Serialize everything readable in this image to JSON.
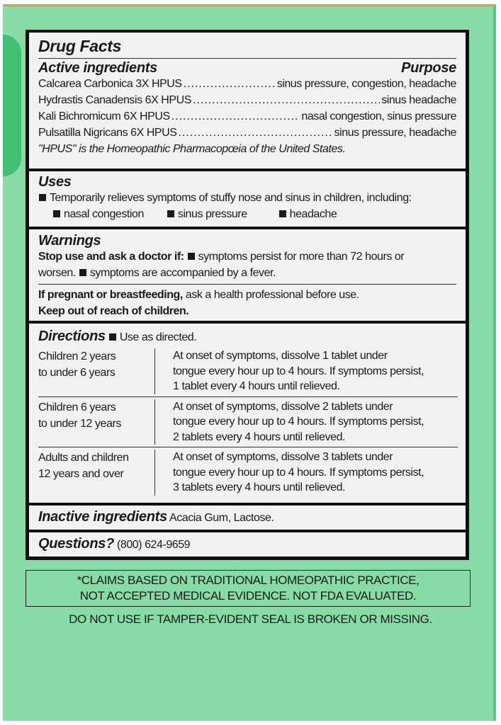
{
  "title": "Drug Facts",
  "active": {
    "heading": "Active ingredients",
    "purpose_heading": "Purpose",
    "items": [
      {
        "name": "Calcarea Carbonica 3X HPUS",
        "purpose": "sinus pressure, congestion, headache"
      },
      {
        "name": "Hydrastis Canadensis 6X HPUS",
        "purpose": "sinus headache"
      },
      {
        "name": "Kali Bichromicum 6X HPUS",
        "purpose": "nasal congestion, sinus pressure"
      },
      {
        "name": "Pulsatilla Nigricans 6X HPUS",
        "purpose": "sinus pressure, headache"
      }
    ],
    "note": "\"HPUS\" is the Homeopathic Pharmacopœia of the United States."
  },
  "uses": {
    "heading": "Uses",
    "text": "Temporarily relieves symptoms of stuffy nose and sinus in children, including:",
    "bullets": [
      "nasal congestion",
      "sinus pressure",
      "headache"
    ]
  },
  "warnings": {
    "heading": "Warnings",
    "stop_bold": "Stop use and ask a doctor if:",
    "stop_1": "symptoms persist for more than 72 hours or",
    "stop_1b": "worsen.",
    "stop_2": "symptoms are accompanied by a fever.",
    "preg_bold": "If pregnant or breastfeeding,",
    "preg_text": " ask a health professional before use.",
    "keep": "Keep out of reach of children."
  },
  "directions": {
    "heading": "Directions",
    "intro": "Use as directed.",
    "rows": [
      {
        "who": [
          "Children 2 years",
          "to under 6 years"
        ],
        "how": [
          "At onset of symptoms, dissolve 1 tablet under",
          "tongue every hour up to 4 hours. If symptoms persist,",
          "1 tablet every 4 hours until relieved."
        ]
      },
      {
        "who": [
          "Children 6 years",
          "to under 12 years"
        ],
        "how": [
          "At onset of symptoms, dissolve 2 tablets under",
          "tongue every hour up to 4 hours. If symptoms persist,",
          "2 tablets every 4 hours until relieved."
        ]
      },
      {
        "who": [
          "Adults and children",
          "12 years and over"
        ],
        "how": [
          "At onset of symptoms, dissolve 3 tablets under",
          "tongue every hour up to 4 hours. If symptoms persist,",
          "3 tablets every 4 hours until relieved."
        ]
      }
    ]
  },
  "inactive": {
    "heading": "Inactive ingredients",
    "text": "Acacia Gum, Lactose."
  },
  "questions": {
    "heading": "Questions?",
    "text": "(800) 624-9659"
  },
  "claims": [
    "*CLAIMS BASED ON TRADITIONAL HOMEOPATHIC PRACTICE,",
    "NOT ACCEPTED MEDICAL EVIDENCE. NOT FDA EVALUATED."
  ],
  "tamper": "DO NOT USE IF TAMPER-EVIDENT SEAL IS BROKEN OR MISSING.",
  "colors": {
    "package": "#86dba6",
    "panel": "#f0f1f0",
    "text": "#1a1a1a"
  }
}
